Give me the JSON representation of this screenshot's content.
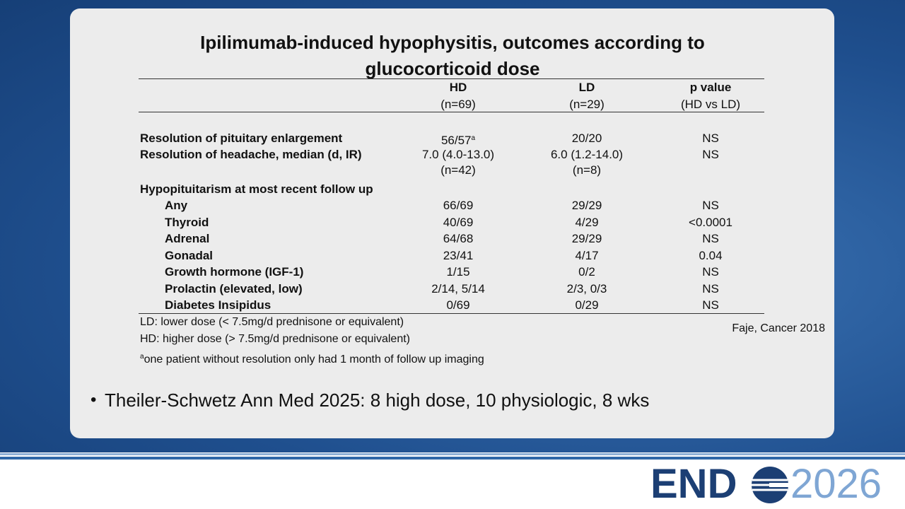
{
  "title": [
    "Ipilimumab-induced hypophysitis, outcomes according to",
    "glucocorticoid dose"
  ],
  "table": {
    "columns": [
      {
        "name": "HD",
        "n": "(n=69)"
      },
      {
        "name": "LD",
        "n": "(n=29)"
      },
      {
        "name": "p value",
        "n": "(HD vs LD)"
      }
    ],
    "rows": [
      {
        "label": "Resolution of pituitary enlargement",
        "hd": "56/57",
        "hd_note": "a",
        "ld": "20/20",
        "p": "NS"
      },
      {
        "label": "Resolution of headache, median (d, IR)",
        "hd": "7.0 (4.0-13.0)",
        "hd_sub": "(n=42)",
        "ld": "6.0 (1.2-14.0)",
        "ld_sub": "(n=8)",
        "p": "NS"
      }
    ],
    "section": {
      "label": "Hypopituitarism at most recent follow up",
      "rows": [
        {
          "label": "Any",
          "hd": "66/69",
          "ld": "29/29",
          "p": "NS"
        },
        {
          "label": "Thyroid",
          "hd": "40/69",
          "ld": "4/29",
          "p": "<0.0001"
        },
        {
          "label": "Adrenal",
          "hd": "64/68",
          "ld": "29/29",
          "p": "NS"
        },
        {
          "label": "Gonadal",
          "hd": "23/41",
          "ld": "4/17",
          "p": "0.04"
        },
        {
          "label": "Growth hormone (IGF-1)",
          "hd": "1/15",
          "ld": "0/2",
          "p": "NS"
        },
        {
          "label": "Prolactin (elevated, low)",
          "hd": "2/14, 5/14",
          "ld": "2/3, 0/3",
          "p": "NS"
        },
        {
          "label": "Diabetes Insipidus",
          "hd": "0/69",
          "ld": "0/29",
          "p": "NS"
        }
      ]
    }
  },
  "footnotes": [
    {
      "text": "LD: lower dose (< 7.5mg/d prednisone or equivalent)"
    },
    {
      "text": "HD: higher dose (> 7.5mg/d prednisone or equivalent)"
    },
    {
      "mark": "a",
      "text": "one patient without resolution only had 1 month of follow up imaging"
    }
  ],
  "citation": "Faje, Cancer 2018",
  "bullet": "Theiler-Schwetz Ann Med 2025: 8 high dose, 10 physiologic, 8 wks",
  "logo": {
    "left": "END",
    "right": "2026"
  }
}
